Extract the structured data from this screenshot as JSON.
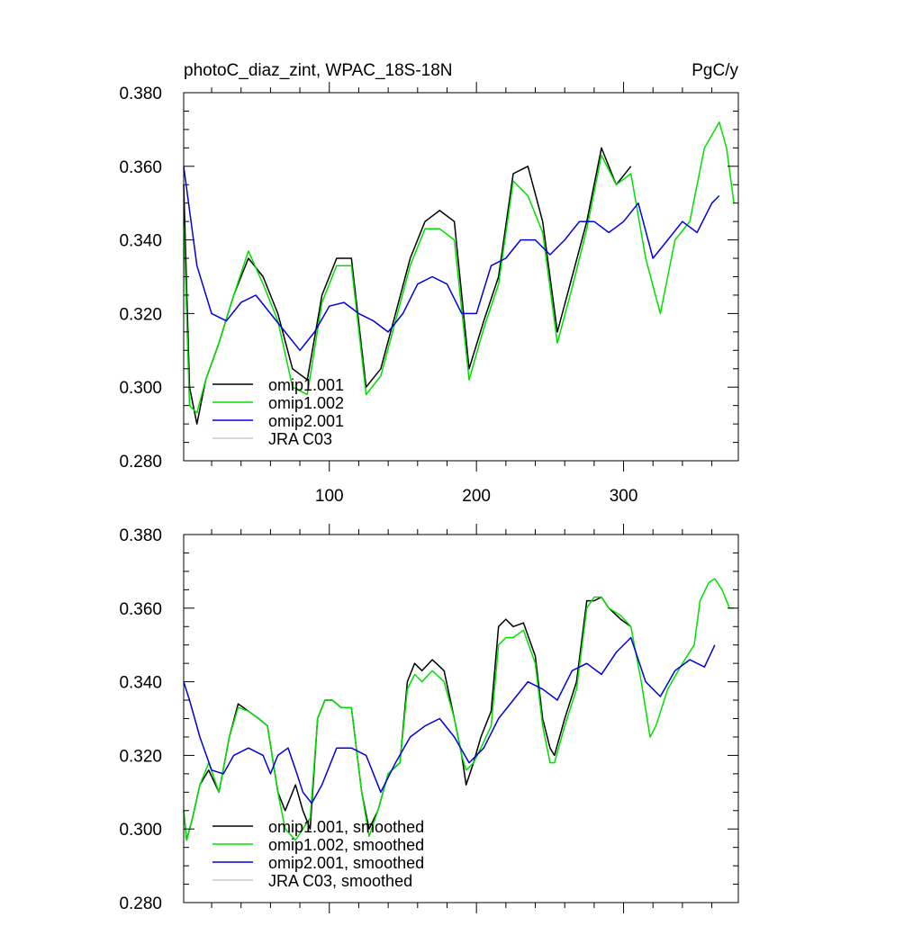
{
  "chart_data": [
    {
      "type": "line",
      "title_left": "photoC_diaz_zint, WPAC_18S-18N",
      "title_right": "PgC/y",
      "xlim": [
        1,
        378
      ],
      "ylim": [
        0.28,
        0.38
      ],
      "x_ticks": [
        100,
        200,
        300
      ],
      "x_tick_labels": [
        "100",
        "200",
        "300"
      ],
      "y_ticks": [
        0.28,
        0.3,
        0.32,
        0.34,
        0.36,
        0.38
      ],
      "y_tick_labels": [
        "0.280",
        "0.300",
        "0.320",
        "0.340",
        "0.360",
        "0.380"
      ],
      "legend_position": "bottom-left",
      "series": [
        {
          "name": "omip1.001",
          "color": "#000000",
          "x": [
            1,
            5,
            10,
            16,
            25,
            35,
            45,
            55,
            65,
            75,
            85,
            95,
            105,
            115,
            125,
            135,
            145,
            155,
            165,
            175,
            185,
            195,
            205,
            215,
            225,
            235,
            245,
            255,
            265,
            275,
            285,
            295,
            305
          ],
          "values": [
            0.355,
            0.3,
            0.29,
            0.302,
            0.312,
            0.325,
            0.335,
            0.33,
            0.32,
            0.305,
            0.302,
            0.325,
            0.335,
            0.335,
            0.3,
            0.305,
            0.32,
            0.335,
            0.345,
            0.348,
            0.345,
            0.305,
            0.318,
            0.33,
            0.358,
            0.36,
            0.345,
            0.315,
            0.33,
            0.345,
            0.365,
            0.355,
            0.36
          ]
        },
        {
          "name": "omip1.002",
          "color": "#00e000",
          "x": [
            1,
            5,
            10,
            16,
            25,
            35,
            45,
            55,
            65,
            75,
            85,
            95,
            105,
            115,
            125,
            135,
            145,
            155,
            165,
            175,
            185,
            195,
            205,
            215,
            225,
            235,
            245,
            255,
            265,
            275,
            285,
            295,
            305,
            315,
            325,
            335,
            345,
            355,
            365,
            370,
            375
          ],
          "values": [
            0.345,
            0.295,
            0.293,
            0.302,
            0.312,
            0.325,
            0.337,
            0.328,
            0.318,
            0.3,
            0.298,
            0.323,
            0.333,
            0.333,
            0.298,
            0.303,
            0.318,
            0.333,
            0.343,
            0.343,
            0.34,
            0.302,
            0.316,
            0.328,
            0.356,
            0.352,
            0.342,
            0.312,
            0.327,
            0.343,
            0.363,
            0.355,
            0.358,
            0.335,
            0.32,
            0.34,
            0.345,
            0.365,
            0.372,
            0.365,
            0.35
          ]
        },
        {
          "name": "omip2.001",
          "color": "#0000e0",
          "x": [
            1,
            10,
            20,
            30,
            40,
            50,
            60,
            70,
            80,
            90,
            100,
            110,
            120,
            130,
            140,
            150,
            160,
            170,
            180,
            190,
            200,
            210,
            220,
            230,
            240,
            250,
            260,
            270,
            280,
            290,
            300,
            310,
            320,
            330,
            340,
            350,
            360,
            365
          ],
          "values": [
            0.36,
            0.333,
            0.32,
            0.318,
            0.323,
            0.325,
            0.32,
            0.315,
            0.31,
            0.315,
            0.322,
            0.323,
            0.32,
            0.318,
            0.315,
            0.32,
            0.328,
            0.33,
            0.328,
            0.32,
            0.32,
            0.333,
            0.335,
            0.34,
            0.34,
            0.336,
            0.34,
            0.345,
            0.345,
            0.342,
            0.345,
            0.35,
            0.335,
            0.34,
            0.345,
            0.342,
            0.35,
            0.352
          ]
        },
        {
          "name": "JRA C03",
          "color": "#c8c8c8",
          "x": [],
          "values": []
        }
      ]
    },
    {
      "type": "line",
      "xlim": [
        1,
        378
      ],
      "ylim": [
        0.28,
        0.38
      ],
      "x_ticks": [
        100,
        200,
        300
      ],
      "y_ticks": [
        0.28,
        0.3,
        0.32,
        0.34,
        0.36,
        0.38
      ],
      "y_tick_labels": [
        "0.280",
        "0.300",
        "0.320",
        "0.340",
        "0.360",
        "0.380"
      ],
      "legend_position": "bottom-left",
      "series": [
        {
          "name": "omip1.001, smoothed",
          "color": "#000000",
          "x": [
            1,
            3,
            7,
            12,
            18,
            25,
            32,
            38,
            45,
            52,
            58,
            65,
            70,
            77,
            82,
            87,
            92,
            97,
            102,
            108,
            115,
            122,
            127,
            133,
            140,
            148,
            153,
            158,
            163,
            170,
            178,
            185,
            190,
            193,
            198,
            203,
            210,
            215,
            220,
            225,
            232,
            240,
            245,
            250,
            253,
            260,
            268,
            275,
            280,
            285,
            290,
            298,
            305
          ],
          "values": [
            0.305,
            0.297,
            0.303,
            0.312,
            0.316,
            0.31,
            0.325,
            0.334,
            0.332,
            0.33,
            0.328,
            0.31,
            0.305,
            0.312,
            0.305,
            0.3,
            0.33,
            0.335,
            0.335,
            0.333,
            0.333,
            0.31,
            0.3,
            0.305,
            0.315,
            0.318,
            0.34,
            0.345,
            0.343,
            0.346,
            0.343,
            0.33,
            0.32,
            0.312,
            0.318,
            0.325,
            0.332,
            0.355,
            0.357,
            0.355,
            0.356,
            0.347,
            0.33,
            0.322,
            0.32,
            0.33,
            0.34,
            0.362,
            0.362,
            0.363,
            0.36,
            0.357,
            0.355
          ]
        },
        {
          "name": "omip1.002, smoothed",
          "color": "#00e000",
          "x": [
            1,
            3,
            7,
            12,
            18,
            25,
            32,
            38,
            45,
            52,
            58,
            65,
            70,
            77,
            82,
            87,
            92,
            97,
            102,
            108,
            115,
            122,
            127,
            133,
            140,
            148,
            153,
            158,
            163,
            170,
            178,
            185,
            190,
            193,
            198,
            203,
            210,
            215,
            220,
            225,
            232,
            240,
            245,
            250,
            253,
            260,
            268,
            275,
            280,
            285,
            290,
            298,
            305,
            312,
            318,
            322,
            330,
            340,
            348,
            352,
            358,
            362,
            367,
            372,
            375
          ],
          "values": [
            0.305,
            0.297,
            0.303,
            0.312,
            0.318,
            0.31,
            0.325,
            0.333,
            0.332,
            0.33,
            0.328,
            0.31,
            0.3,
            0.297,
            0.3,
            0.303,
            0.33,
            0.335,
            0.335,
            0.333,
            0.333,
            0.31,
            0.298,
            0.305,
            0.315,
            0.318,
            0.338,
            0.342,
            0.34,
            0.343,
            0.34,
            0.33,
            0.32,
            0.316,
            0.318,
            0.322,
            0.328,
            0.35,
            0.352,
            0.352,
            0.354,
            0.345,
            0.328,
            0.318,
            0.318,
            0.328,
            0.338,
            0.36,
            0.363,
            0.363,
            0.36,
            0.358,
            0.355,
            0.34,
            0.325,
            0.328,
            0.338,
            0.345,
            0.35,
            0.362,
            0.367,
            0.368,
            0.365,
            0.36,
            0.36
          ]
        },
        {
          "name": "omip2.001, smoothed",
          "color": "#0000e0",
          "x": [
            1,
            5,
            12,
            20,
            28,
            35,
            45,
            55,
            60,
            65,
            72,
            78,
            82,
            88,
            95,
            105,
            115,
            125,
            135,
            145,
            155,
            165,
            175,
            185,
            195,
            205,
            215,
            225,
            235,
            245,
            255,
            265,
            275,
            285,
            295,
            305,
            315,
            325,
            335,
            345,
            355,
            362
          ],
          "values": [
            0.34,
            0.335,
            0.325,
            0.316,
            0.315,
            0.32,
            0.322,
            0.32,
            0.315,
            0.32,
            0.322,
            0.315,
            0.31,
            0.307,
            0.312,
            0.322,
            0.322,
            0.32,
            0.31,
            0.318,
            0.325,
            0.328,
            0.33,
            0.325,
            0.318,
            0.322,
            0.33,
            0.335,
            0.34,
            0.338,
            0.335,
            0.343,
            0.345,
            0.342,
            0.348,
            0.352,
            0.34,
            0.336,
            0.343,
            0.346,
            0.344,
            0.35
          ]
        },
        {
          "name": "JRA C03, smoothed",
          "color": "#c8c8c8",
          "x": [],
          "values": []
        }
      ]
    }
  ]
}
